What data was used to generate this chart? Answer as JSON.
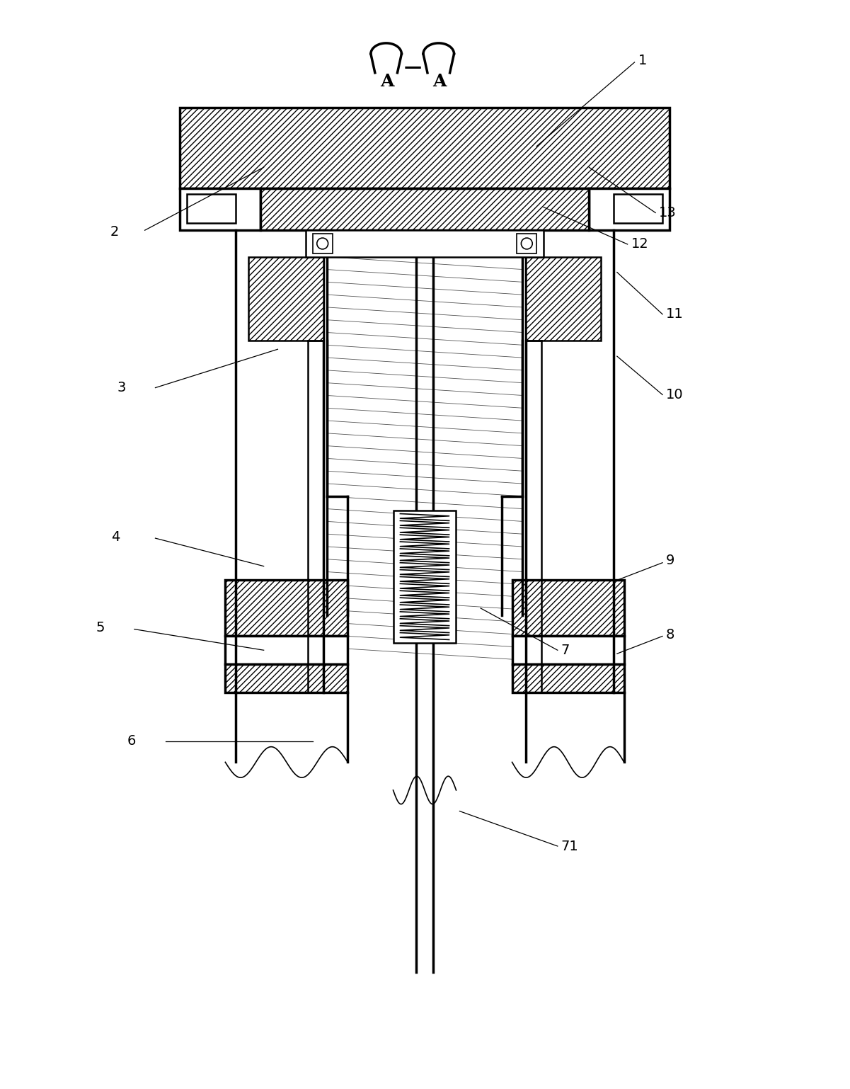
{
  "bg_color": "#ffffff",
  "line_color": "#000000",
  "figsize": [
    12.01,
    15.38
  ],
  "dpi": 100,
  "label_fontsize": 14,
  "leader_lw": 0.9
}
